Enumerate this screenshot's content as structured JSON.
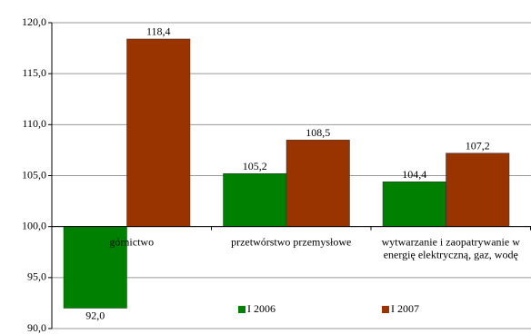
{
  "chart_data": {
    "type": "bar",
    "categories": [
      "górnictwo",
      "przetwórstwo przemysłowe",
      [
        "wytwarzanie i zaopatrywanie w",
        "energię elektryczną, gaz, wodę"
      ]
    ],
    "series": [
      {
        "name": "I 2006",
        "color": "#008000",
        "values": [
          92.0,
          105.2,
          104.4
        ],
        "value_labels": [
          "92,0",
          "105,2",
          "104,4"
        ]
      },
      {
        "name": "I 2007",
        "color": "#993300",
        "values": [
          118.4,
          108.5,
          107.2
        ],
        "value_labels": [
          "118,4",
          "108,5",
          "107,2"
        ]
      }
    ],
    "ylim": [
      90,
      120
    ],
    "yticks": [
      {
        "value": 90,
        "label": "90,0"
      },
      {
        "value": 95,
        "label": "95,0"
      },
      {
        "value": 100,
        "label": "100,0"
      },
      {
        "value": 105,
        "label": "105,0"
      },
      {
        "value": 110,
        "label": "110,0"
      },
      {
        "value": 115,
        "label": "115,0"
      },
      {
        "value": 120,
        "label": "120,0"
      }
    ],
    "baseline": 100,
    "grid": true
  }
}
